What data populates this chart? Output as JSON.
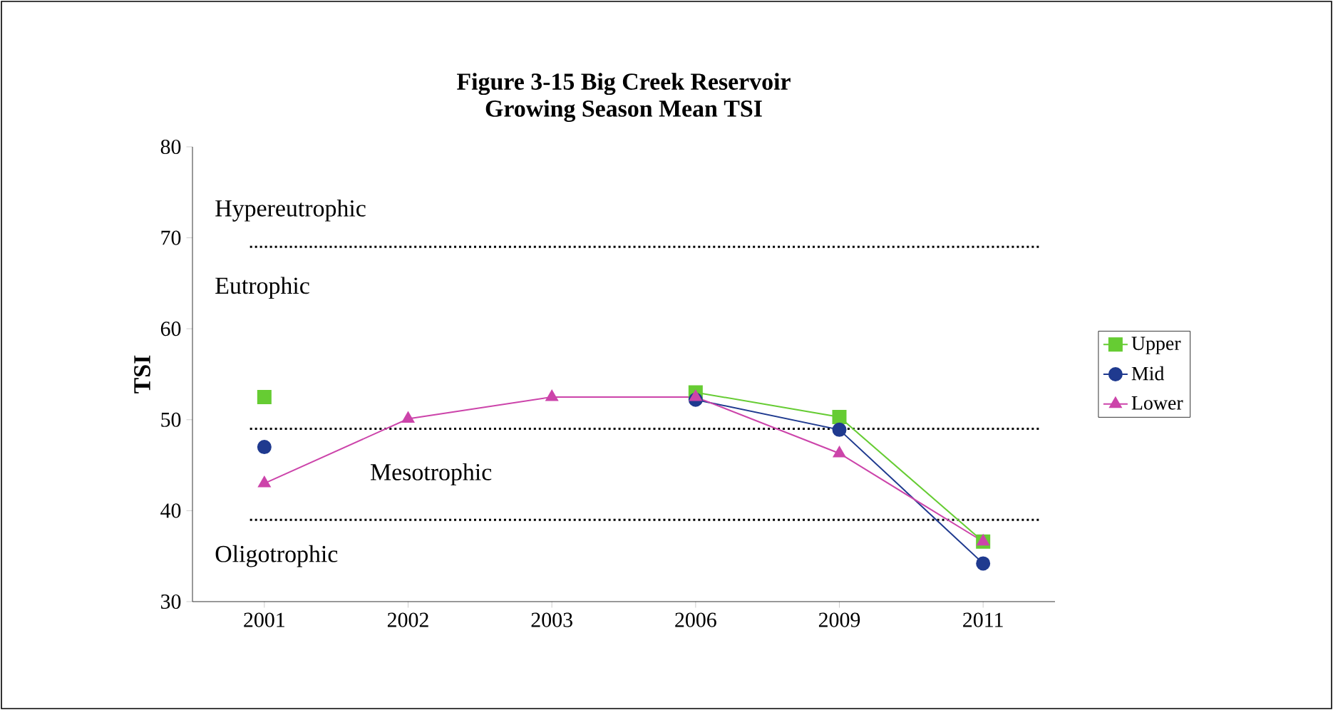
{
  "chart_data": {
    "type": "line",
    "title": "Figure 3-15 Big Creek Reservoir\nGrowing Season Mean TSI",
    "ylabel": "TSI",
    "categories": [
      "2001",
      "2002",
      "2003",
      "2006",
      "2009",
      "2011"
    ],
    "series": [
      {
        "name": "Upper",
        "color": "#66cc33",
        "marker": "square",
        "values": [
          52.5,
          null,
          null,
          53.0,
          50.3,
          36.6
        ]
      },
      {
        "name": "Mid",
        "color": "#1f3a8f",
        "marker": "circle",
        "values": [
          47.0,
          null,
          null,
          52.2,
          48.9,
          34.2
        ]
      },
      {
        "name": "Lower",
        "color": "#cc44aa",
        "marker": "triangle",
        "values": [
          43.0,
          50.1,
          52.5,
          52.5,
          46.3,
          36.6
        ]
      }
    ],
    "ylim": [
      30,
      80
    ],
    "yticks": [
      30,
      40,
      50,
      60,
      70,
      80
    ],
    "ref_lines": [
      {
        "axis": "y",
        "value": 69,
        "color": "#000000",
        "line_style": "dotted"
      },
      {
        "axis": "y",
        "value": 49,
        "color": "#000000",
        "line_style": "dotted"
      },
      {
        "axis": "y",
        "value": 39,
        "color": "#000000",
        "line_style": "dotted"
      }
    ],
    "annotations": [
      "Hypereutrophic",
      "Eutrophic",
      "Mesotrophic",
      "Oligotrophic"
    ],
    "legend": "right",
    "grid": false
  }
}
